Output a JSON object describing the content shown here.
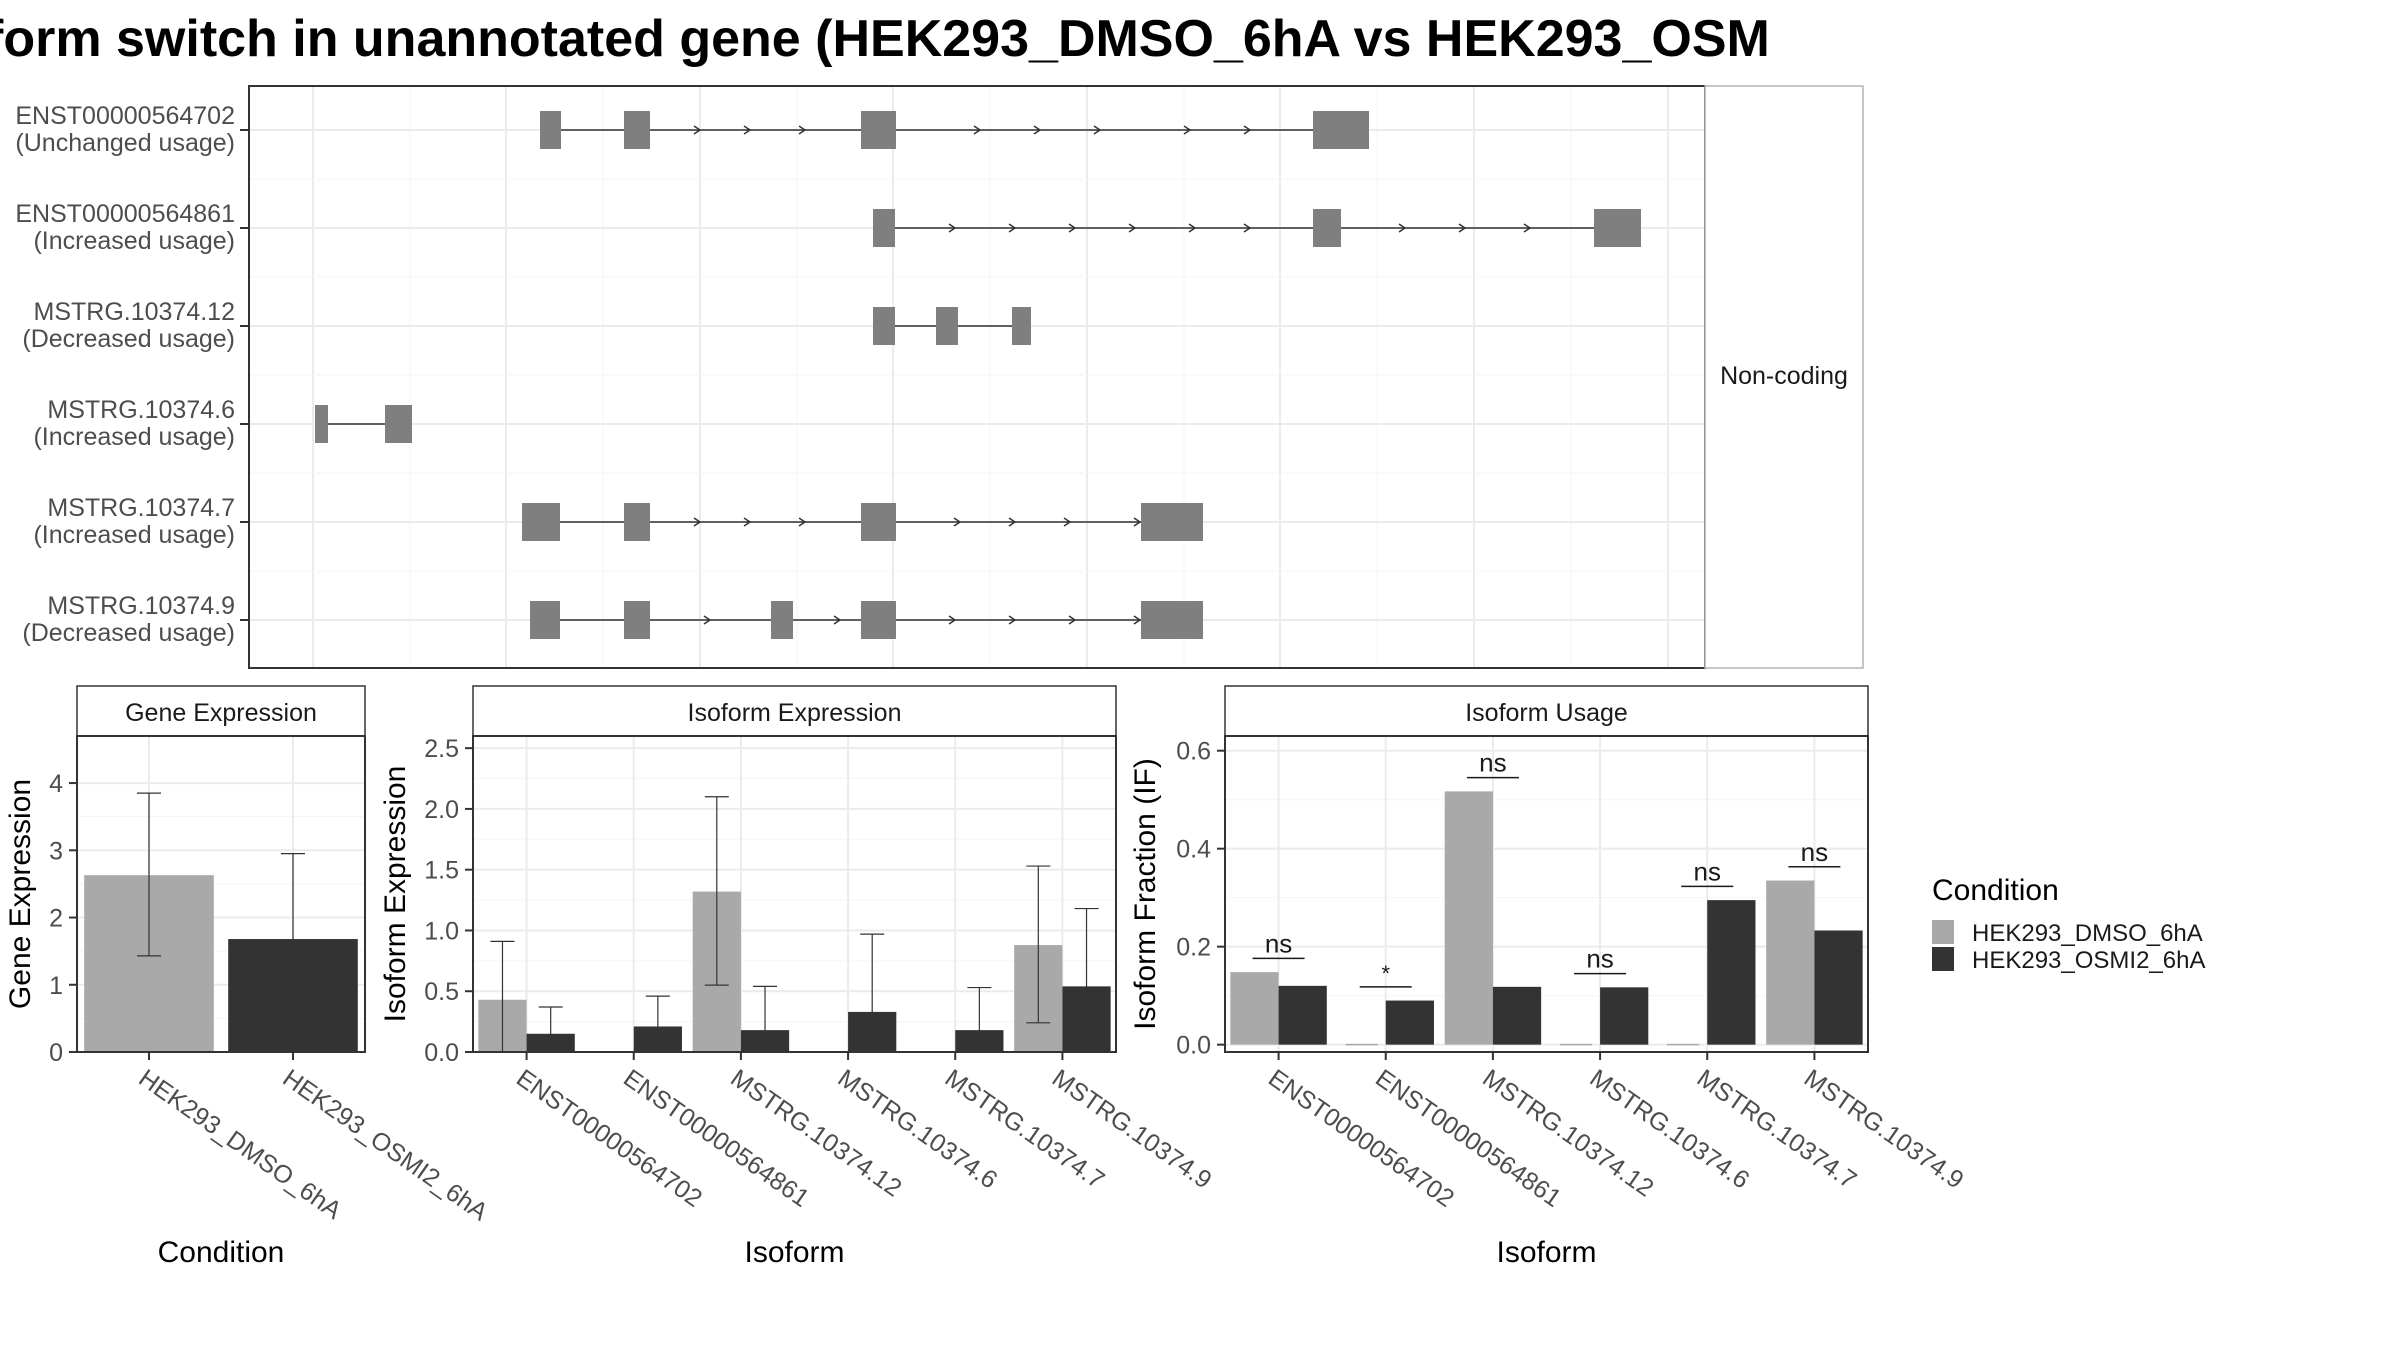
{
  "title": "form switch in unannotated gene (HEK293_DMSO_6hA vs HEK293_OSM",
  "colors": {
    "dmso": "#a9a9a9",
    "osmi": "#333333",
    "exon": "#7f7f7f",
    "panel_strip": "#ffffff",
    "grid": "#ebebeb"
  },
  "structure": {
    "facet_label": "Non-coding",
    "isoforms": [
      {
        "name": "ENST00000564702",
        "usage": "(Unchanged usage)"
      },
      {
        "name": "ENST00000564861",
        "usage": "(Increased usage)"
      },
      {
        "name": "MSTRG.10374.12",
        "usage": "(Decreased usage)"
      },
      {
        "name": "MSTRG.10374.6",
        "usage": "(Increased usage)"
      },
      {
        "name": "MSTRG.10374.7",
        "usage": "(Increased usage)"
      },
      {
        "name": "MSTRG.10374.9",
        "usage": "(Decreased usage)"
      }
    ]
  },
  "legend": {
    "title": "Condition",
    "items": [
      {
        "label": "HEK293_DMSO_6hA",
        "color": "#a9a9a9"
      },
      {
        "label": "HEK293_OSMI2_6hA",
        "color": "#333333"
      }
    ]
  },
  "chart_data": [
    {
      "type": "bar",
      "title": "Gene Expression",
      "xlabel": "Condition",
      "ylabel": "Gene Expression",
      "ylim": [
        0,
        4.7
      ],
      "yticks": [
        "0",
        "1",
        "2",
        "3",
        "4"
      ],
      "categories": [
        "HEK293_DMSO_6hA",
        "HEK293_OSMI2_6hA"
      ],
      "values": [
        2.63,
        1.68
      ],
      "errors": [
        [
          1.43,
          3.85
        ],
        [
          0.4,
          2.95
        ]
      ]
    },
    {
      "type": "bar",
      "title": "Isoform Expression",
      "xlabel": "Isoform",
      "ylabel": "Isoform Expression",
      "ylim": [
        0,
        2.6
      ],
      "yticks": [
        "0.0",
        "0.5",
        "1.0",
        "1.5",
        "2.0",
        "2.5"
      ],
      "categories": [
        "ENST00000564702",
        "ENST00000564861",
        "MSTRG.10374.12",
        "MSTRG.10374.6",
        "MSTRG.10374.7",
        "MSTRG.10374.9"
      ],
      "series": [
        {
          "name": "HEK293_DMSO_6hA",
          "values": [
            0.43,
            0.0,
            1.32,
            0.0,
            0.0,
            0.88
          ],
          "errors": [
            [
              0,
              0.91
            ],
            [
              0,
              0
            ],
            [
              0.55,
              2.1
            ],
            [
              0,
              0
            ],
            [
              0,
              0
            ],
            [
              0.24,
              1.53
            ]
          ]
        },
        {
          "name": "HEK293_OSMI2_6hA",
          "values": [
            0.15,
            0.21,
            0.18,
            0.33,
            0.18,
            0.54
          ],
          "errors": [
            [
              0,
              0.37
            ],
            [
              0,
              0.46
            ],
            [
              0,
              0.54
            ],
            [
              0,
              0.97
            ],
            [
              0,
              0.53
            ],
            [
              0,
              1.18
            ]
          ]
        }
      ]
    },
    {
      "type": "bar",
      "title": "Isoform Usage",
      "xlabel": "Isoform",
      "ylabel": "Isoform Fraction (IF)",
      "ylim": [
        -0.015,
        0.63
      ],
      "yticks": [
        "0.0",
        "0.2",
        "0.4",
        "0.6"
      ],
      "categories": [
        "ENST00000564702",
        "ENST00000564861",
        "MSTRG.10374.12",
        "MSTRG.10374.6",
        "MSTRG.10374.7",
        "MSTRG.10374.9"
      ],
      "series": [
        {
          "name": "HEK293_DMSO_6hA",
          "values": [
            0.148,
            0.0,
            0.517,
            0.0,
            0.0,
            0.335
          ]
        },
        {
          "name": "HEK293_OSMI2_6hA",
          "values": [
            0.12,
            0.09,
            0.118,
            0.117,
            0.295,
            0.233
          ]
        }
      ],
      "significance": [
        {
          "label": "ns",
          "y": 0.176
        },
        {
          "label": "*",
          "y": 0.118
        },
        {
          "label": "ns",
          "y": 0.545
        },
        {
          "label": "ns",
          "y": 0.145
        },
        {
          "label": "ns",
          "y": 0.323
        },
        {
          "label": "ns",
          "y": 0.363
        }
      ]
    }
  ]
}
